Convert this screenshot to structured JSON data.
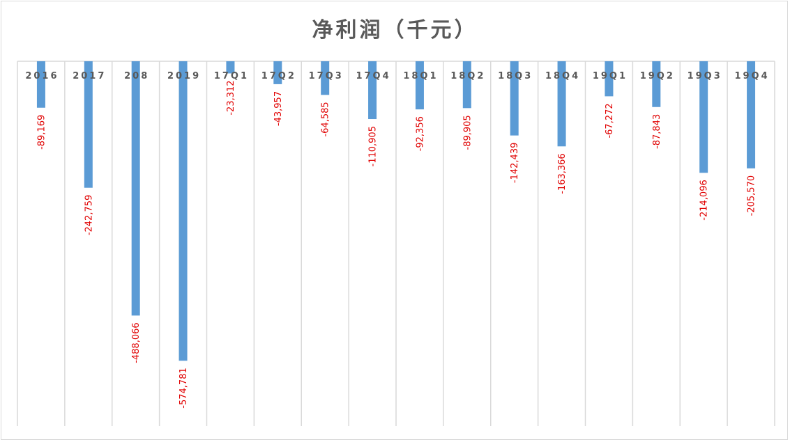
{
  "chart_data": {
    "type": "bar",
    "title": "净利润（千元）",
    "categories": [
      "2016",
      "2017",
      "208",
      "2019",
      "17Q1",
      "17Q2",
      "17Q3",
      "17Q4",
      "18Q1",
      "18Q2",
      "18Q3",
      "18Q4",
      "19Q1",
      "19Q2",
      "19Q3",
      "19Q4"
    ],
    "values": [
      -89169,
      -242759,
      -488066,
      -574781,
      -23312,
      -43957,
      -64585,
      -110905,
      -92356,
      -89905,
      -142439,
      -163366,
      -67272,
      -87843,
      -214096,
      -205570
    ],
    "value_labels": [
      "-89,169",
      "-242,759",
      "-488,066",
      "-574,781",
      "-23,312",
      "-43,957",
      "-64,585",
      "-110,905",
      "-92,356",
      "-89,905",
      "-142,439",
      "-163,366",
      "-67,272",
      "-87,843",
      "-214,096",
      "-205,570"
    ],
    "ylim": [
      -700000,
      0
    ],
    "grid": "vertical",
    "legend": "none",
    "colors": {
      "bar": "#5b9bd5",
      "value_label": "#e00000",
      "axis_text": "#595959",
      "grid": "#d9d9d9"
    }
  }
}
